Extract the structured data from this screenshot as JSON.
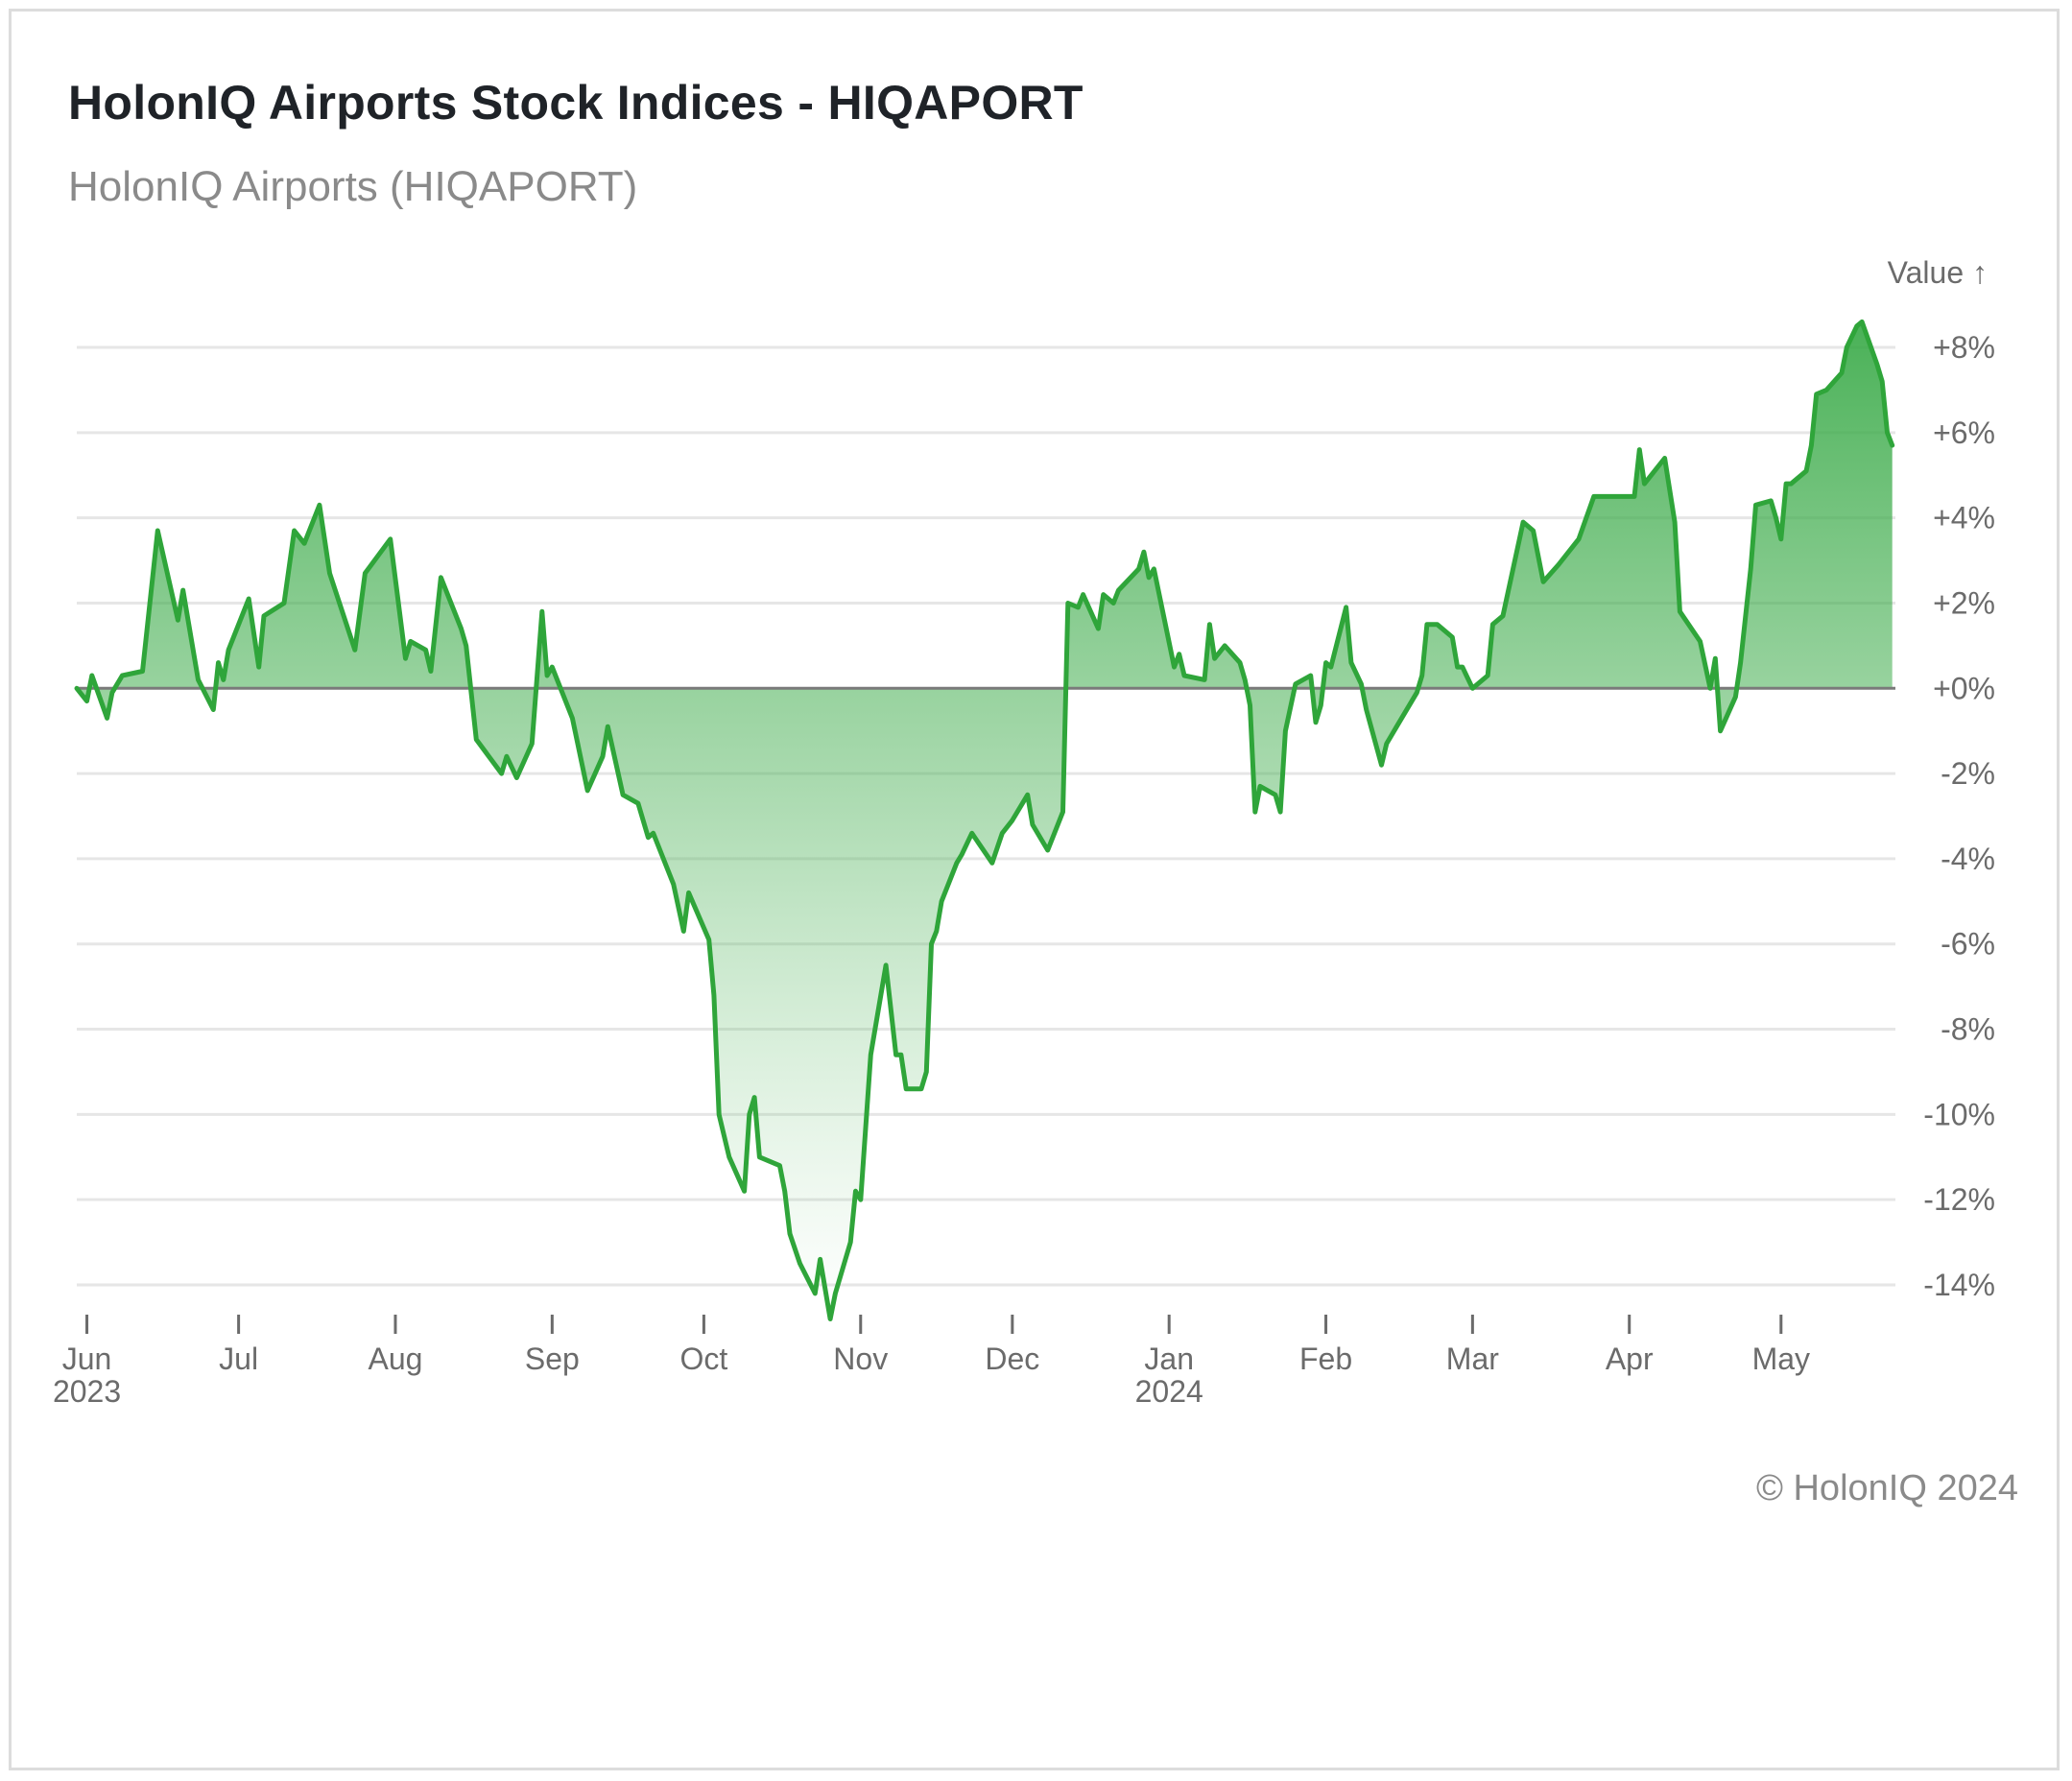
{
  "header": {
    "title": "HolonIQ Airports Stock Indices - HIQAPORT",
    "subtitle": "HolonIQ Airports (HIQAPORT)"
  },
  "footer": {
    "credit": "© HolonIQ 2024"
  },
  "colors": {
    "line": "#2fa53a",
    "fill_top": "#34a843",
    "gridline": "#e6e6e6",
    "zero_line": "#7a7a7a",
    "title": "#1f2328",
    "muted_text": "#8a8a8a"
  },
  "chart_data": {
    "type": "area",
    "title": "HolonIQ Airports Stock Indices - HIQAPORT",
    "subtitle": "HolonIQ Airports (HIQAPORT)",
    "ylabel": "Value ↑",
    "xlabel": "",
    "ylim": [
      -14,
      8
    ],
    "xlim": [
      "2023-05-30",
      "2024-05-24"
    ],
    "grid": true,
    "legend": "none",
    "y_ticks": [
      {
        "value": 8,
        "label": "+8%"
      },
      {
        "value": 6,
        "label": "+6%"
      },
      {
        "value": 4,
        "label": "+4%"
      },
      {
        "value": 2,
        "label": "+2%"
      },
      {
        "value": 0,
        "label": "+0%"
      },
      {
        "value": -2,
        "label": "-2%"
      },
      {
        "value": -4,
        "label": "-4%"
      },
      {
        "value": -6,
        "label": "-6%"
      },
      {
        "value": -8,
        "label": "-8%"
      },
      {
        "value": -10,
        "label": "-10%"
      },
      {
        "value": -12,
        "label": "-12%"
      },
      {
        "value": -14,
        "label": "-14%"
      }
    ],
    "x_ticks": [
      {
        "date": "2023-06-01",
        "label": "Jun",
        "sublabel": "2023"
      },
      {
        "date": "2023-07-01",
        "label": "Jul",
        "sublabel": ""
      },
      {
        "date": "2023-08-01",
        "label": "Aug",
        "sublabel": ""
      },
      {
        "date": "2023-09-01",
        "label": "Sep",
        "sublabel": ""
      },
      {
        "date": "2023-10-01",
        "label": "Oct",
        "sublabel": ""
      },
      {
        "date": "2023-11-01",
        "label": "Nov",
        "sublabel": ""
      },
      {
        "date": "2023-12-01",
        "label": "Dec",
        "sublabel": ""
      },
      {
        "date": "2024-01-01",
        "label": "Jan",
        "sublabel": "2024"
      },
      {
        "date": "2024-02-01",
        "label": "Feb",
        "sublabel": ""
      },
      {
        "date": "2024-03-01",
        "label": "Mar",
        "sublabel": ""
      },
      {
        "date": "2024-04-01",
        "label": "Apr",
        "sublabel": ""
      },
      {
        "date": "2024-05-01",
        "label": "May",
        "sublabel": ""
      }
    ],
    "series": [
      {
        "values": [
          [
            "2023-05-30",
            0.0
          ],
          [
            "2023-06-01",
            -0.3
          ],
          [
            "2023-06-02",
            0.3
          ],
          [
            "2023-06-05",
            -0.7
          ],
          [
            "2023-06-06",
            -0.1
          ],
          [
            "2023-06-08",
            0.3
          ],
          [
            "2023-06-12",
            0.4
          ],
          [
            "2023-06-15",
            3.7
          ],
          [
            "2023-06-19",
            1.6
          ],
          [
            "2023-06-20",
            2.3
          ],
          [
            "2023-06-23",
            0.2
          ],
          [
            "2023-06-26",
            -0.5
          ],
          [
            "2023-06-27",
            0.6
          ],
          [
            "2023-06-28",
            0.2
          ],
          [
            "2023-06-29",
            0.9
          ],
          [
            "2023-07-03",
            2.1
          ],
          [
            "2023-07-05",
            0.5
          ],
          [
            "2023-07-06",
            1.7
          ],
          [
            "2023-07-10",
            2.0
          ],
          [
            "2023-07-12",
            3.7
          ],
          [
            "2023-07-14",
            3.4
          ],
          [
            "2023-07-17",
            4.3
          ],
          [
            "2023-07-19",
            2.7
          ],
          [
            "2023-07-24",
            0.9
          ],
          [
            "2023-07-26",
            2.7
          ],
          [
            "2023-07-31",
            3.5
          ],
          [
            "2023-08-03",
            0.7
          ],
          [
            "2023-08-04",
            1.1
          ],
          [
            "2023-08-07",
            0.9
          ],
          [
            "2023-08-08",
            0.4
          ],
          [
            "2023-08-10",
            2.6
          ],
          [
            "2023-08-14",
            1.4
          ],
          [
            "2023-08-15",
            1.0
          ],
          [
            "2023-08-17",
            -1.2
          ],
          [
            "2023-08-22",
            -2.0
          ],
          [
            "2023-08-23",
            -1.6
          ],
          [
            "2023-08-25",
            -2.1
          ],
          [
            "2023-08-28",
            -1.3
          ],
          [
            "2023-08-30",
            1.8
          ],
          [
            "2023-08-31",
            0.3
          ],
          [
            "2023-09-01",
            0.5
          ],
          [
            "2023-09-05",
            -0.7
          ],
          [
            "2023-09-08",
            -2.4
          ],
          [
            "2023-09-11",
            -1.6
          ],
          [
            "2023-09-12",
            -0.9
          ],
          [
            "2023-09-15",
            -2.5
          ],
          [
            "2023-09-18",
            -2.7
          ],
          [
            "2023-09-20",
            -3.5
          ],
          [
            "2023-09-21",
            -3.4
          ],
          [
            "2023-09-25",
            -4.6
          ],
          [
            "2023-09-27",
            -5.7
          ],
          [
            "2023-09-28",
            -4.8
          ],
          [
            "2023-10-02",
            -5.9
          ],
          [
            "2023-10-03",
            -7.2
          ],
          [
            "2023-10-04",
            -10.0
          ],
          [
            "2023-10-06",
            -11.0
          ],
          [
            "2023-10-09",
            -11.8
          ],
          [
            "2023-10-10",
            -10.0
          ],
          [
            "2023-10-11",
            -9.6
          ],
          [
            "2023-10-12",
            -11.0
          ],
          [
            "2023-10-16",
            -11.2
          ],
          [
            "2023-10-17",
            -11.8
          ],
          [
            "2023-10-18",
            -12.8
          ],
          [
            "2023-10-20",
            -13.5
          ],
          [
            "2023-10-23",
            -14.2
          ],
          [
            "2023-10-24",
            -13.4
          ],
          [
            "2023-10-26",
            -14.8
          ],
          [
            "2023-10-27",
            -14.2
          ],
          [
            "2023-10-30",
            -13.0
          ],
          [
            "2023-10-31",
            -11.8
          ],
          [
            "2023-11-01",
            -12.0
          ],
          [
            "2023-11-03",
            -8.6
          ],
          [
            "2023-11-06",
            -6.5
          ],
          [
            "2023-11-08",
            -8.6
          ],
          [
            "2023-11-09",
            -8.6
          ],
          [
            "2023-11-10",
            -9.4
          ],
          [
            "2023-11-13",
            -9.4
          ],
          [
            "2023-11-14",
            -9.0
          ],
          [
            "2023-11-15",
            -6.0
          ],
          [
            "2023-11-16",
            -5.7
          ],
          [
            "2023-11-17",
            -5.0
          ],
          [
            "2023-11-20",
            -4.1
          ],
          [
            "2023-11-21",
            -3.9
          ],
          [
            "2023-11-23",
            -3.4
          ],
          [
            "2023-11-27",
            -4.1
          ],
          [
            "2023-11-29",
            -3.4
          ],
          [
            "2023-12-01",
            -3.1
          ],
          [
            "2023-12-04",
            -2.5
          ],
          [
            "2023-12-05",
            -3.2
          ],
          [
            "2023-12-08",
            -3.8
          ],
          [
            "2023-12-11",
            -2.9
          ],
          [
            "2023-12-12",
            2.0
          ],
          [
            "2023-12-14",
            1.9
          ],
          [
            "2023-12-15",
            2.2
          ],
          [
            "2023-12-18",
            1.4
          ],
          [
            "2023-12-19",
            2.2
          ],
          [
            "2023-12-21",
            2.0
          ],
          [
            "2023-12-22",
            2.3
          ],
          [
            "2023-12-26",
            2.8
          ],
          [
            "2023-12-27",
            3.2
          ],
          [
            "2023-12-28",
            2.6
          ],
          [
            "2023-12-29",
            2.8
          ],
          [
            "2024-01-02",
            0.5
          ],
          [
            "2024-01-03",
            0.8
          ],
          [
            "2024-01-04",
            0.3
          ],
          [
            "2024-01-08",
            0.2
          ],
          [
            "2024-01-09",
            1.5
          ],
          [
            "2024-01-10",
            0.7
          ],
          [
            "2024-01-12",
            1.0
          ],
          [
            "2024-01-15",
            0.6
          ],
          [
            "2024-01-16",
            0.2
          ],
          [
            "2024-01-17",
            -0.4
          ],
          [
            "2024-01-18",
            -2.9
          ],
          [
            "2024-01-19",
            -2.3
          ],
          [
            "2024-01-22",
            -2.5
          ],
          [
            "2024-01-23",
            -2.9
          ],
          [
            "2024-01-24",
            -1.0
          ],
          [
            "2024-01-26",
            0.1
          ],
          [
            "2024-01-29",
            0.3
          ],
          [
            "2024-01-30",
            -0.8
          ],
          [
            "2024-01-31",
            -0.4
          ],
          [
            "2024-02-01",
            0.6
          ],
          [
            "2024-02-02",
            0.5
          ],
          [
            "2024-02-05",
            1.9
          ],
          [
            "2024-02-06",
            0.6
          ],
          [
            "2024-02-08",
            0.1
          ],
          [
            "2024-02-09",
            -0.5
          ],
          [
            "2024-02-12",
            -1.8
          ],
          [
            "2024-02-13",
            -1.3
          ],
          [
            "2024-02-15",
            -0.9
          ],
          [
            "2024-02-19",
            -0.1
          ],
          [
            "2024-02-20",
            0.3
          ],
          [
            "2024-02-21",
            1.5
          ],
          [
            "2024-02-23",
            1.5
          ],
          [
            "2024-02-26",
            1.2
          ],
          [
            "2024-02-27",
            0.5
          ],
          [
            "2024-02-28",
            0.5
          ],
          [
            "2024-03-01",
            0.0
          ],
          [
            "2024-03-04",
            0.3
          ],
          [
            "2024-03-05",
            1.5
          ],
          [
            "2024-03-07",
            1.7
          ],
          [
            "2024-03-11",
            3.9
          ],
          [
            "2024-03-13",
            3.7
          ],
          [
            "2024-03-15",
            2.5
          ],
          [
            "2024-03-18",
            2.9
          ],
          [
            "2024-03-22",
            3.5
          ],
          [
            "2024-03-25",
            4.5
          ],
          [
            "2024-03-28",
            4.5
          ],
          [
            "2024-04-02",
            4.5
          ],
          [
            "2024-04-03",
            5.6
          ],
          [
            "2024-04-04",
            4.8
          ],
          [
            "2024-04-08",
            5.4
          ],
          [
            "2024-04-10",
            3.9
          ],
          [
            "2024-04-11",
            1.8
          ],
          [
            "2024-04-15",
            1.1
          ],
          [
            "2024-04-17",
            0.0
          ],
          [
            "2024-04-18",
            0.7
          ],
          [
            "2024-04-19",
            -1.0
          ],
          [
            "2024-04-22",
            -0.2
          ],
          [
            "2024-04-23",
            0.6
          ],
          [
            "2024-04-25",
            2.8
          ],
          [
            "2024-04-26",
            4.3
          ],
          [
            "2024-04-29",
            4.4
          ],
          [
            "2024-04-30",
            4.0
          ],
          [
            "2024-05-01",
            3.5
          ],
          [
            "2024-05-02",
            4.8
          ],
          [
            "2024-05-03",
            4.8
          ],
          [
            "2024-05-06",
            5.1
          ],
          [
            "2024-05-07",
            5.7
          ],
          [
            "2024-05-08",
            6.9
          ],
          [
            "2024-05-10",
            7.0
          ],
          [
            "2024-05-13",
            7.4
          ],
          [
            "2024-05-14",
            8.0
          ],
          [
            "2024-05-16",
            8.5
          ],
          [
            "2024-05-17",
            8.6
          ],
          [
            "2024-05-20",
            7.6
          ],
          [
            "2024-05-21",
            7.2
          ],
          [
            "2024-05-22",
            6.0
          ],
          [
            "2024-05-23",
            5.7
          ]
        ]
      }
    ]
  }
}
